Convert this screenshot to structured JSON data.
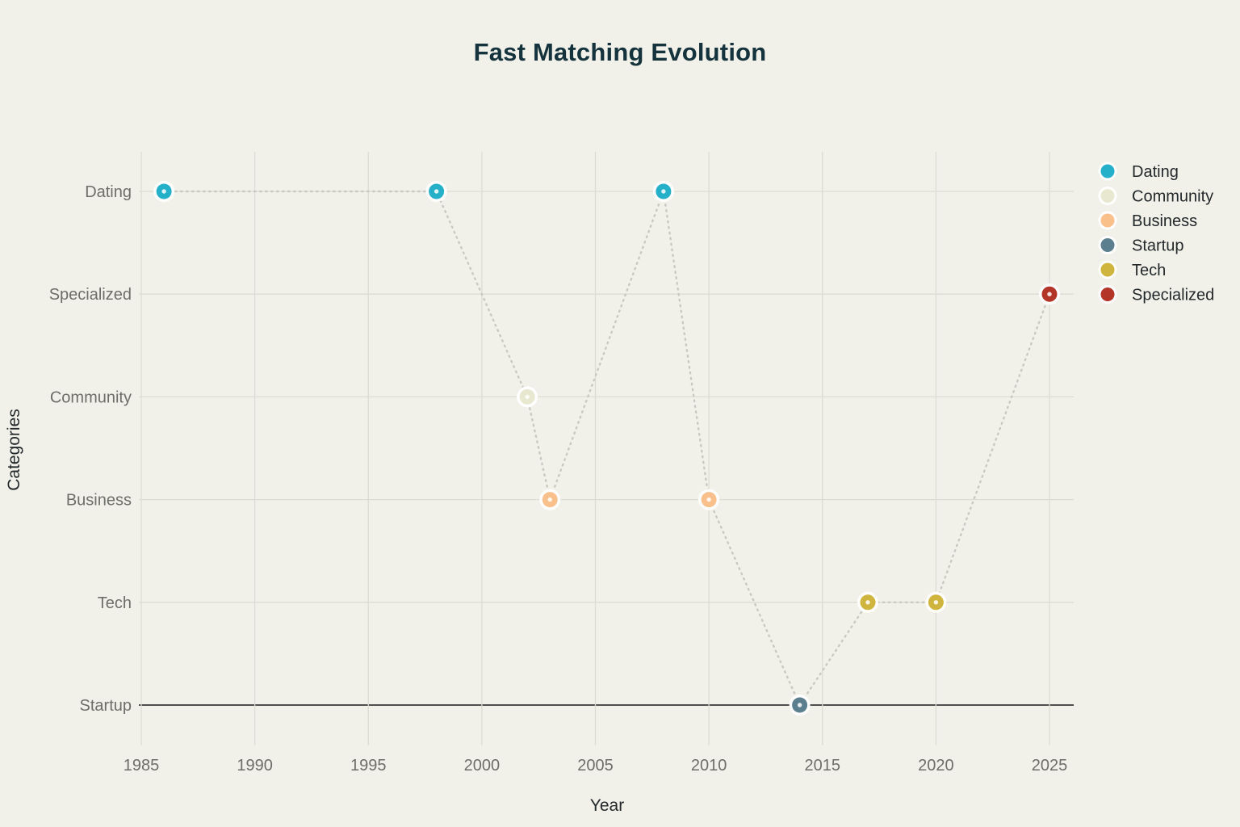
{
  "page": {
    "background": "#f1f1ea"
  },
  "chart_data": {
    "type": "scatter",
    "title": "Fast Matching Evolution",
    "xlabel": "Year",
    "ylabel": "Categories",
    "x_ticks": [
      1985,
      1990,
      1995,
      2000,
      2005,
      2010,
      2015,
      2020,
      2025
    ],
    "xlim": [
      1984.9,
      2026.1
    ],
    "y_categories": [
      "Dating",
      "Specialized",
      "Community",
      "Business",
      "Tech",
      "Startup"
    ],
    "zero_category": "Startup",
    "grid": true,
    "legend_position": "right",
    "line_style": "dotted",
    "connects": "chronological",
    "points": [
      {
        "year": 1986,
        "category": "Dating"
      },
      {
        "year": 1998,
        "category": "Dating"
      },
      {
        "year": 2002,
        "category": "Community"
      },
      {
        "year": 2003,
        "category": "Business"
      },
      {
        "year": 2008,
        "category": "Dating"
      },
      {
        "year": 2010,
        "category": "Business"
      },
      {
        "year": 2014,
        "category": "Startup"
      },
      {
        "year": 2017,
        "category": "Tech"
      },
      {
        "year": 2020,
        "category": "Tech"
      },
      {
        "year": 2025,
        "category": "Specialized"
      }
    ],
    "legend": [
      {
        "label": "Dating",
        "color": "#25b0c9"
      },
      {
        "label": "Community",
        "color": "#e7e8cf"
      },
      {
        "label": "Business",
        "color": "#fac08c"
      },
      {
        "label": "Startup",
        "color": "#5c7f90"
      },
      {
        "label": "Tech",
        "color": "#cfb53e"
      },
      {
        "label": "Specialized",
        "color": "#b23528"
      }
    ],
    "series_colors": {
      "Dating": "#25b0c9",
      "Community": "#e7e8cf",
      "Business": "#fac08c",
      "Startup": "#5c7f90",
      "Tech": "#cfb53e",
      "Specialized": "#b23528"
    },
    "colors": {
      "background": "#f1f1ea",
      "grid": "#dcdcd4",
      "zeroline": "#4f4f4f",
      "connector": "#c9c9c2",
      "tick_label": "#6e6e68",
      "axis_title": "#23282a",
      "legend_label": "#23282a",
      "title": "#15333d",
      "marker_ring": "#ffffff"
    }
  }
}
